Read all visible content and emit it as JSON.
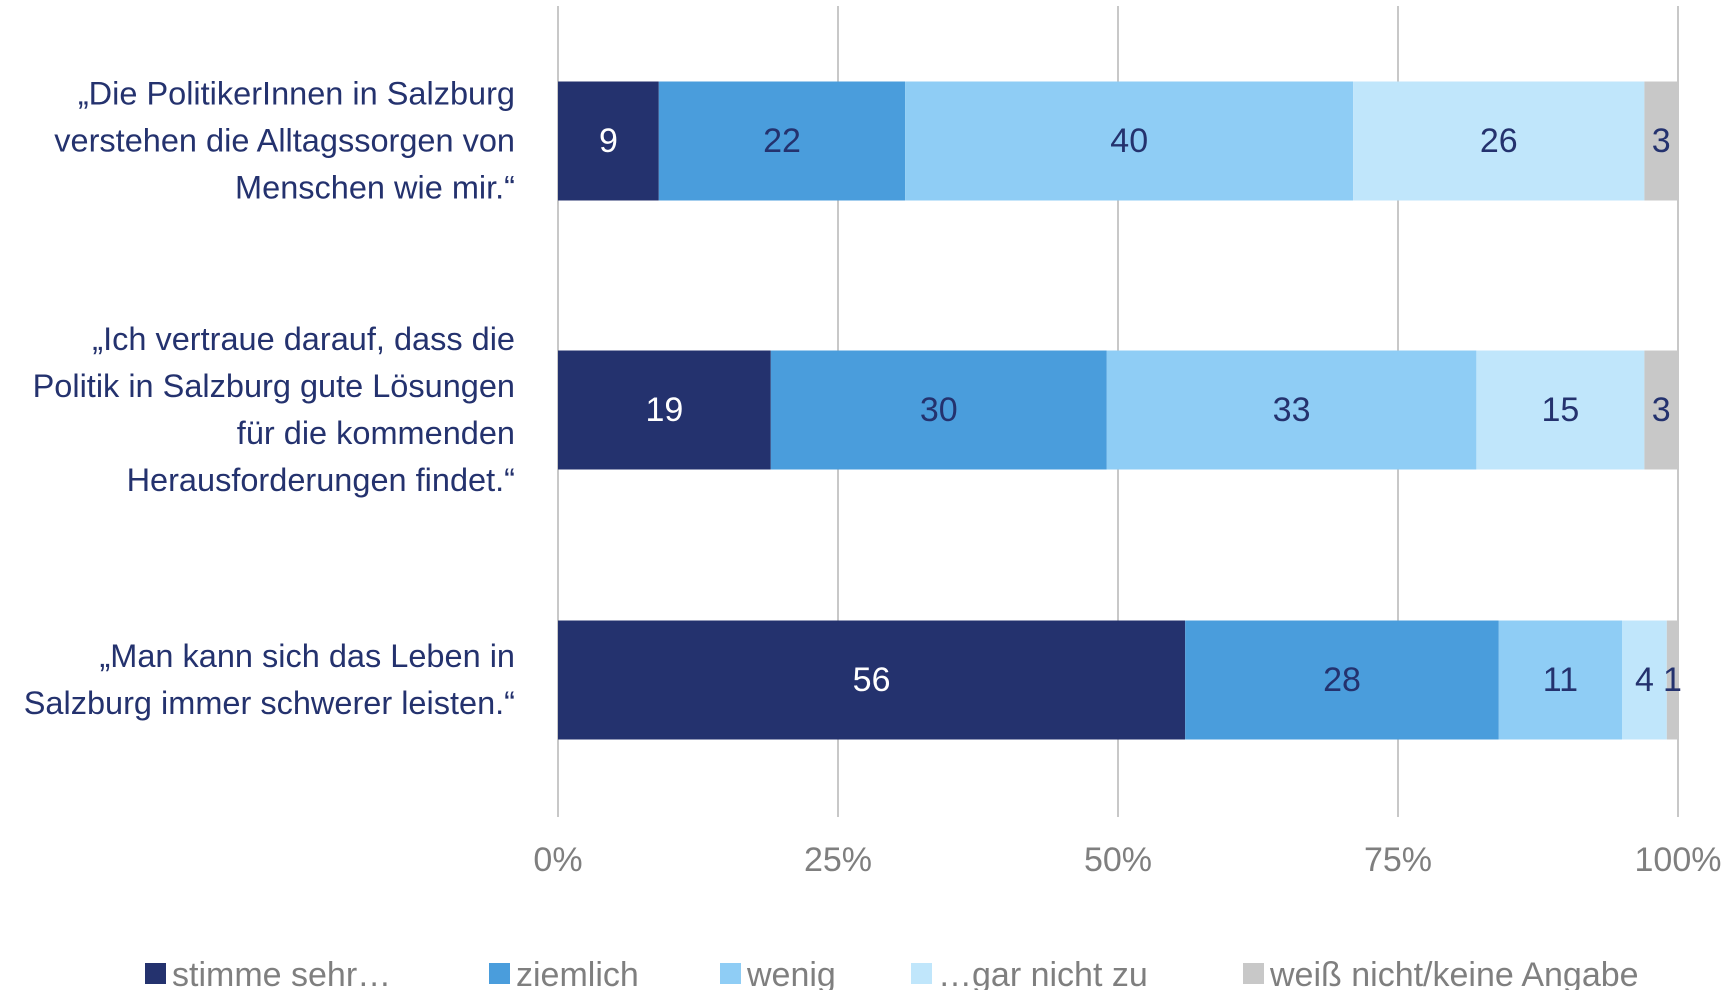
{
  "chart_data": {
    "type": "stacked_bar_horizontal",
    "categories": [
      "„Die PolitikerInnen in Salzburg verstehen die Alltagssorgen von Menschen wie mir.“",
      "„Ich vertraue darauf, dass die Politik in Salzburg gute Lösungen für die kommenden Herausforderungen findet.“",
      "„Man kann sich das Leben in Salzburg immer schwerer leisten.“"
    ],
    "series": [
      {
        "name": "stimme sehr…",
        "color": "#24326e",
        "label_color": "#ffffff",
        "values": [
          9,
          19,
          56
        ]
      },
      {
        "name": "ziemlich",
        "color": "#4a9ddc",
        "label_color": "#24326e",
        "values": [
          22,
          30,
          28
        ]
      },
      {
        "name": "wenig",
        "color": "#8fcdf5",
        "label_color": "#24326e",
        "values": [
          40,
          33,
          11
        ]
      },
      {
        "name": "…gar nicht zu",
        "color": "#c0e6fb",
        "label_color": "#24326e",
        "values": [
          26,
          15,
          4
        ]
      },
      {
        "name": "weiß nicht/keine Angabe",
        "color": "#c8c8c8",
        "label_color": "#24326e",
        "values": [
          3,
          3,
          1
        ]
      }
    ],
    "xlim": [
      0,
      100
    ],
    "xticks": [
      {
        "value": 0,
        "label": "0%"
      },
      {
        "value": 25,
        "label": "25%"
      },
      {
        "value": 50,
        "label": "50%"
      },
      {
        "value": 75,
        "label": "75%"
      },
      {
        "value": 100,
        "label": "100%"
      }
    ],
    "grid": true,
    "legend": "bottom"
  }
}
